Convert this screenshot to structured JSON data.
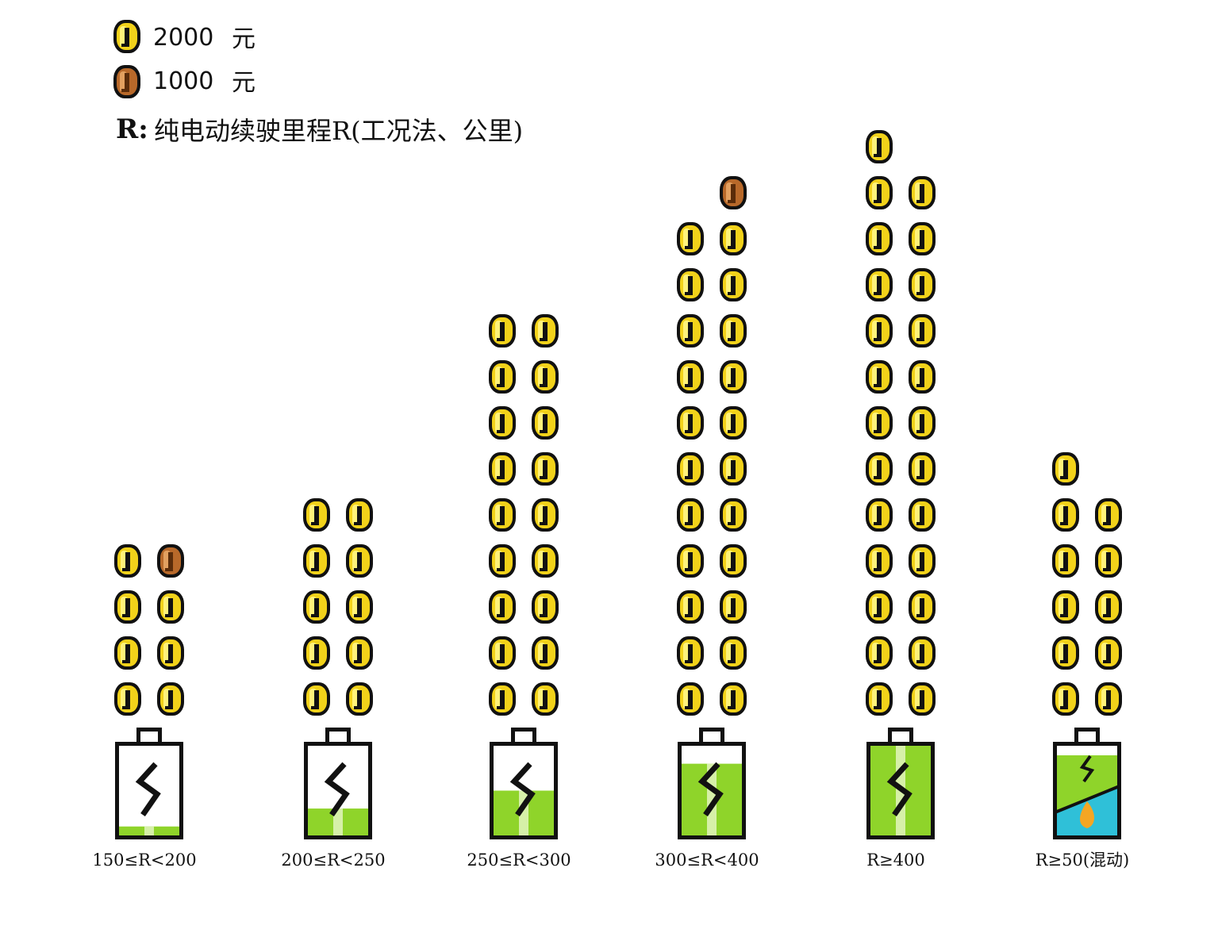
{
  "legend": {
    "items": [
      {
        "value": "2000",
        "unit": "元",
        "coin": "gold-coin",
        "color": "#f2d21a"
      },
      {
        "value": "1000",
        "unit": "元",
        "coin": "bronze-coin",
        "color": "#b8692a"
      }
    ],
    "note_key": "R:",
    "note_text": "纯电动续驶里程R(工况法、公里)"
  },
  "colors": {
    "gold": "#f2d21a",
    "gold_light": "#fff27a",
    "bronze": "#b8692a",
    "bronze_light": "#e2a060",
    "outline": "#111111",
    "battery_green": "#8fd42a",
    "battery_green_light": "#d6f0a8",
    "hybrid_teal": "#2fc0d8"
  },
  "chart_data": {
    "type": "pictograph",
    "unit": "元",
    "coin_values": {
      "gold": 2000,
      "bronze": 1000
    },
    "categories": [
      "150≤R<200",
      "200≤R<250",
      "250≤R<300",
      "300≤R<400",
      "R≥400",
      "R≥50(混动)"
    ],
    "series": [
      {
        "category": "150≤R<200",
        "gold_coins": 7,
        "bronze_coins": 1,
        "total": 15000,
        "battery_level": 0.1,
        "hybrid": false
      },
      {
        "category": "200≤R<250",
        "gold_coins": 10,
        "bronze_coins": 0,
        "total": 20000,
        "battery_level": 0.3,
        "hybrid": false
      },
      {
        "category": "250≤R<300",
        "gold_coins": 18,
        "bronze_coins": 0,
        "total": 36000,
        "battery_level": 0.5,
        "hybrid": false
      },
      {
        "category": "300≤R<400",
        "gold_coins": 22,
        "bronze_coins": 1,
        "total": 45000,
        "battery_level": 0.8,
        "hybrid": false
      },
      {
        "category": "R≥400",
        "gold_coins": 25,
        "bronze_coins": 0,
        "total": 50000,
        "battery_level": 1.0,
        "hybrid": false
      },
      {
        "category": "R≥50(混动)",
        "gold_coins": 11,
        "bronze_coins": 0,
        "total": 22000,
        "battery_level": 1.0,
        "hybrid": true
      }
    ]
  }
}
